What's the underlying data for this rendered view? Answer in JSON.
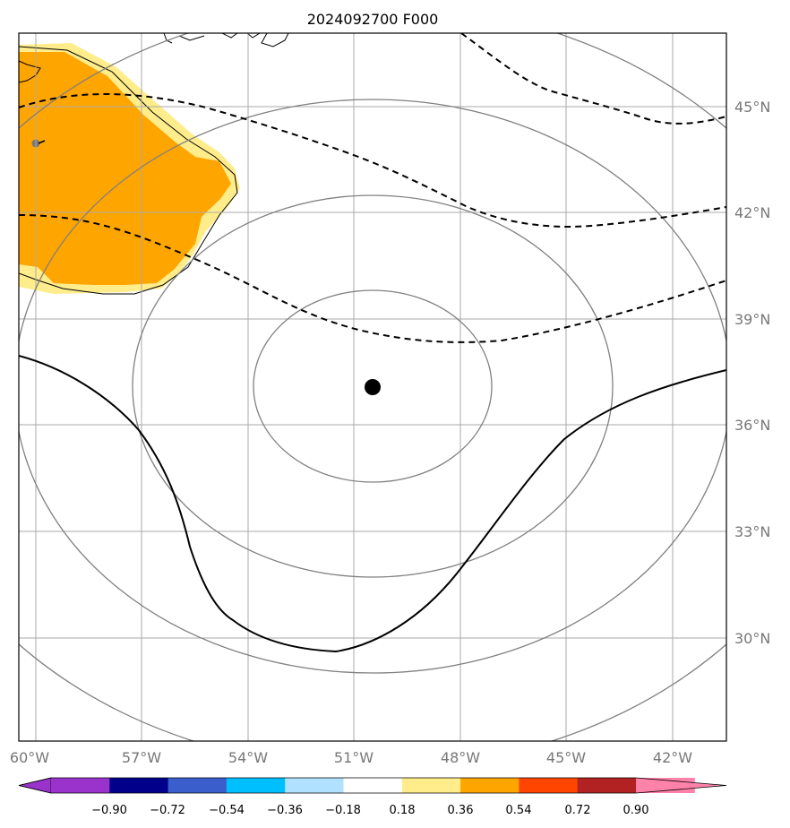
{
  "title": "2024092700 F000",
  "map": {
    "lon_ticks": [
      "60°W",
      "57°W",
      "54°W",
      "51°W",
      "48°W",
      "45°W",
      "42°W"
    ],
    "lat_ticks": [
      "45°N",
      "42°N",
      "39°N",
      "36°N",
      "33°N",
      "30°N"
    ],
    "storm_center": {
      "lon": -50.5,
      "lat": 37.0
    },
    "range_rings": 4
  },
  "colorbar": {
    "ticks": [
      "−0.90",
      "−0.72",
      "−0.54",
      "−0.36",
      "−0.18",
      "0.18",
      "0.36",
      "0.54",
      "0.72",
      "0.90"
    ],
    "colors": [
      "#9933cc",
      "#00008b",
      "#3a5fcd",
      "#00bfff",
      "#b0e2ff",
      "#ffffff",
      "#ffec8b",
      "#ffa500",
      "#ff4500",
      "#b22222",
      "#ff82ab"
    ]
  }
}
